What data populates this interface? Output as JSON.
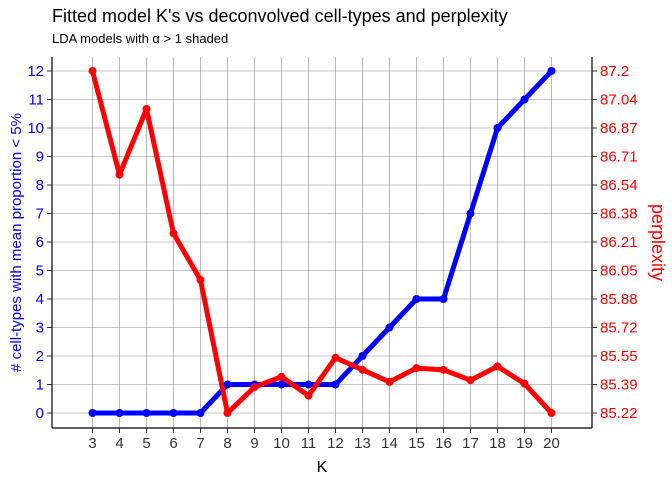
{
  "chart_data": {
    "type": "line",
    "title": "Fitted model K's vs deconvolved cell-types and perplexity",
    "subtitle": "LDA models with α > 1 shaded",
    "xlabel": "K",
    "ylabel_left": "# cell-types with mean proportion < 5%",
    "ylabel_right": "perplexity",
    "x": [
      3,
      4,
      5,
      6,
      7,
      8,
      9,
      10,
      11,
      12,
      13,
      14,
      15,
      16,
      17,
      18,
      19,
      20
    ],
    "x_ticks": [
      "3",
      "4",
      "5",
      "6",
      "7",
      "8",
      "9",
      "10",
      "11",
      "12",
      "13",
      "14",
      "15",
      "16",
      "17",
      "18",
      "19",
      "20"
    ],
    "left_ticks": [
      "0",
      "1",
      "2",
      "3",
      "4",
      "5",
      "6",
      "7",
      "8",
      "9",
      "10",
      "11",
      "12"
    ],
    "right_ticks": [
      "85.22",
      "85.39",
      "85.55",
      "85.72",
      "85.88",
      "86.05",
      "86.21",
      "86.38",
      "86.54",
      "86.71",
      "86.87",
      "87.04",
      "87.2"
    ],
    "ylim_left": [
      0,
      12
    ],
    "ylim_right": [
      85.22,
      87.2
    ],
    "grid": true,
    "series": [
      {
        "axis": "left",
        "color": "#0000ff",
        "values": [
          0,
          0,
          0,
          0,
          0,
          1,
          1,
          1,
          1,
          1,
          2,
          3,
          4,
          4,
          7,
          10,
          11,
          12
        ]
      },
      {
        "axis": "right",
        "color": "#ff0000",
        "values": [
          87.2,
          86.6,
          86.98,
          86.26,
          85.99,
          85.22,
          85.37,
          85.43,
          85.32,
          85.54,
          85.47,
          85.4,
          85.48,
          85.47,
          85.41,
          85.49,
          85.39,
          85.22
        ]
      }
    ]
  }
}
